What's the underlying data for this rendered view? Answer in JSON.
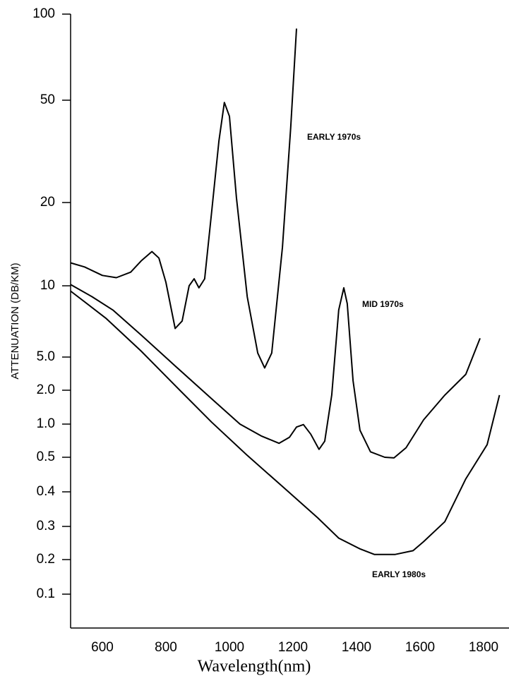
{
  "chart_data": {
    "type": "line",
    "xlabel": "Wavelength(nm)",
    "ylabel": "ATTENUATION (DB/KM)",
    "xlim": [
      500,
      1860
    ],
    "xticks": [
      600,
      800,
      1000,
      1200,
      1400,
      1600,
      1800
    ],
    "ylim": [
      0.1,
      100
    ],
    "yticks": [
      100,
      50,
      20,
      10,
      {
        "value": 5,
        "label": "5.0"
      },
      {
        "value": 2,
        "label": "2.0"
      },
      {
        "value": 1,
        "label": "1.0"
      },
      0.5,
      0.4,
      0.3,
      0.2,
      0.1
    ],
    "series": [
      {
        "name": "EARLY 1970s",
        "color": "#000000",
        "x": [
          500,
          544,
          600,
          644,
          689,
          722,
          756,
          778,
          800,
          829,
          851,
          873,
          889,
          904,
          922,
          944,
          967,
          984,
          1000,
          1022,
          1056,
          1089,
          1111,
          1133,
          1167,
          1193,
          1211
        ],
        "values": [
          12.1,
          11.7,
          10.9,
          10.7,
          11.2,
          12.3,
          13.3,
          12.6,
          10.3,
          6.6,
          7.1,
          10,
          10.6,
          9.8,
          10.6,
          18.5,
          34.7,
          49,
          43.3,
          20.9,
          9.0,
          5.2,
          3.7,
          5.2,
          13.8,
          39.2,
          89
        ]
      },
      {
        "name": "MID 1970s",
        "color": "#000000",
        "x": [
          500,
          567,
          633,
          722,
          833,
          944,
          1033,
          1100,
          1156,
          1189,
          1211,
          1233,
          1256,
          1282,
          1300,
          1322,
          1344,
          1360,
          1371,
          1389,
          1411,
          1444,
          1489,
          1518,
          1556,
          1611,
          1678,
          1744,
          1789
        ],
        "values": [
          10.1,
          9.0,
          7.9,
          6.2,
          3.8,
          1.68,
          1.0,
          0.78,
          0.67,
          0.76,
          0.94,
          0.99,
          0.81,
          0.59,
          0.7,
          1.81,
          7.9,
          9.8,
          8.4,
          2.6,
          0.88,
          0.56,
          0.5,
          0.498,
          0.61,
          1.09,
          1.81,
          3.1,
          6.0
        ]
      },
      {
        "name": "EARLY 1980s",
        "color": "#000000",
        "x": [
          500,
          611,
          722,
          833,
          944,
          1056,
          1167,
          1278,
          1344,
          1411,
          1456,
          1522,
          1578,
          1611,
          1678,
          1744,
          1811,
          1850
        ],
        "values": [
          9.5,
          7.3,
          5.3,
          2.2,
          1.04,
          0.52,
          0.414,
          0.322,
          0.26,
          0.228,
          0.213,
          0.213,
          0.223,
          0.249,
          0.312,
          0.435,
          0.65,
          1.81
        ]
      }
    ]
  }
}
